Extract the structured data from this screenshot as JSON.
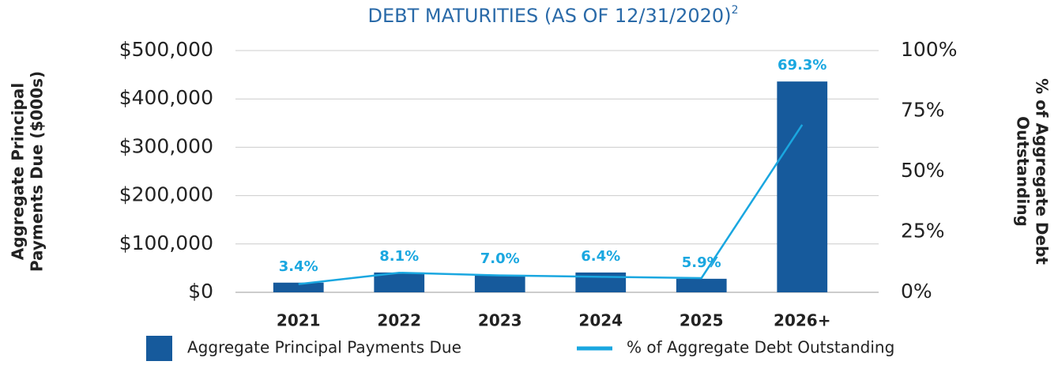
{
  "chart_data": {
    "type": "bar_line",
    "title": "DEBT MATURITIES (AS OF 12/31/2020)",
    "title_footnote": "2",
    "y_label": [
      "Aggregate Principal",
      "Payments Due ($000s)"
    ],
    "y2_label": [
      "% of Aggregate Debt",
      "Outstanding"
    ],
    "categories": [
      "2021",
      "2022",
      "2023",
      "2024",
      "2025",
      "2026+"
    ],
    "series": [
      {
        "name": "Aggregate Principal Payments Due",
        "color": "#165a9c",
        "kind": "bar",
        "values": [
          20000,
          41000,
          36000,
          41000,
          28000,
          436000
        ]
      },
      {
        "name": "% of Aggregate Debt Outstanding",
        "color": "#1aa7e0",
        "kind": "line",
        "axis": "y2",
        "values": [
          3.4,
          8.1,
          7.0,
          6.4,
          5.9,
          69.3
        ],
        "value_labels": [
          "3.4%",
          "8.1%",
          "7.0%",
          "6.4%",
          "5.9%",
          "69.3%"
        ]
      }
    ],
    "ylim": [
      0,
      500000
    ],
    "yticks": [
      {
        "value": 0,
        "label": "$0"
      },
      {
        "value": 100000,
        "label": "$100,000"
      },
      {
        "value": 200000,
        "label": "$200,000"
      },
      {
        "value": 300000,
        "label": "$300,000"
      },
      {
        "value": 400000,
        "label": "$400,000"
      },
      {
        "value": 500000,
        "label": "$500,000"
      }
    ],
    "y2lim": [
      0,
      100
    ],
    "y2ticks": [
      {
        "value": 0,
        "label": "0%"
      },
      {
        "value": 25,
        "label": "25%"
      },
      {
        "value": 50,
        "label": "50%"
      },
      {
        "value": 75,
        "label": "75%"
      },
      {
        "value": 100,
        "label": "100%"
      }
    ],
    "grid": true,
    "title_color": "#2a6aa8",
    "legend_position": "bottom"
  }
}
